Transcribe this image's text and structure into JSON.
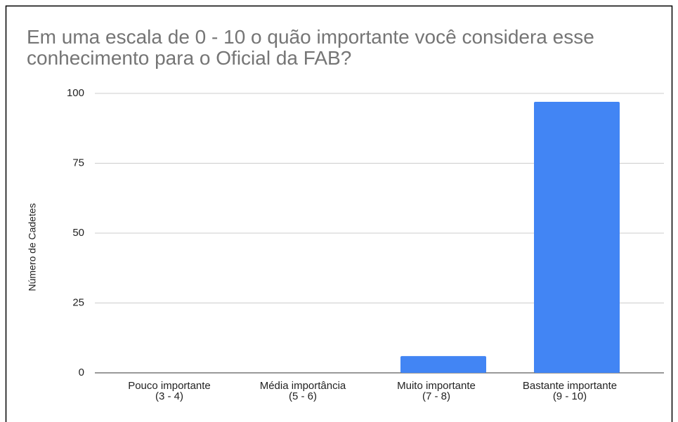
{
  "chart_data": {
    "type": "bar",
    "title": "Em uma escala de 0 - 10 o quão importante você considera esse conhecimento para o Oficial da FAB?",
    "y_label": "Número de Cadetes",
    "categories": [
      "Pouco importante\n(3 - 4)",
      "Média importância\n(5 - 6)",
      "Muito importante\n(7 - 8)",
      "Bastante importante\n(9 - 10)"
    ],
    "values": [
      0,
      0,
      6,
      97
    ],
    "color": "#4285f4",
    "ylim": [
      0,
      100
    ],
    "yticks": [
      0,
      25,
      50,
      75,
      100
    ],
    "grid": true
  }
}
